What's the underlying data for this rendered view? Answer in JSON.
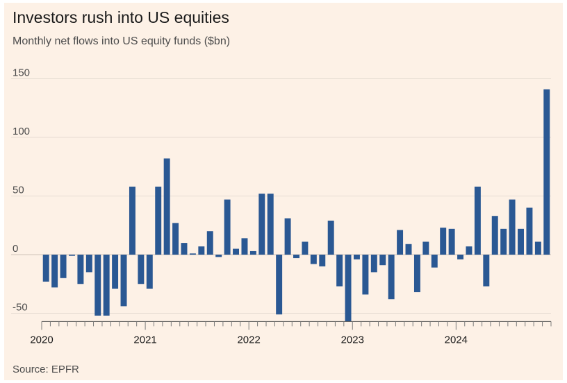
{
  "header": {
    "title": "Investors rush into US equities",
    "subtitle": "Monthly net flows into US equity funds ($bn)"
  },
  "footer": {
    "source": "Source: EPFR"
  },
  "colors": {
    "bar": "#2a5893",
    "grid": "#e6dcd2",
    "background": "#fdf1e6"
  },
  "chart_data": {
    "type": "bar",
    "title": "Investors rush into US equities",
    "subtitle": "Monthly net flows into US equity funds ($bn)",
    "xlabel": "",
    "ylabel": "",
    "ylim": [
      -57,
      150
    ],
    "yticks": [
      -50,
      0,
      50,
      100,
      150
    ],
    "xtick_labels": [
      {
        "label": "2020",
        "index": 0
      },
      {
        "label": "2021",
        "index": 12
      },
      {
        "label": "2022",
        "index": 24
      },
      {
        "label": "2023",
        "index": 36
      },
      {
        "label": "2024",
        "index": 48
      }
    ],
    "grid": true,
    "start": "2020-01",
    "end": "2024-11",
    "categories": [
      "2020-01",
      "2020-02",
      "2020-03",
      "2020-04",
      "2020-05",
      "2020-06",
      "2020-07",
      "2020-08",
      "2020-09",
      "2020-10",
      "2020-11",
      "2020-12",
      "2021-01",
      "2021-02",
      "2021-03",
      "2021-04",
      "2021-05",
      "2021-06",
      "2021-07",
      "2021-08",
      "2021-09",
      "2021-10",
      "2021-11",
      "2021-12",
      "2022-01",
      "2022-02",
      "2022-03",
      "2022-04",
      "2022-05",
      "2022-06",
      "2022-07",
      "2022-08",
      "2022-09",
      "2022-10",
      "2022-11",
      "2022-12",
      "2023-01",
      "2023-02",
      "2023-03",
      "2023-04",
      "2023-05",
      "2023-06",
      "2023-07",
      "2023-08",
      "2023-09",
      "2023-10",
      "2023-11",
      "2023-12",
      "2024-01",
      "2024-02",
      "2024-03",
      "2024-04",
      "2024-05",
      "2024-06",
      "2024-07",
      "2024-08",
      "2024-09",
      "2024-10",
      "2024-11"
    ],
    "values": [
      -23,
      -28,
      -20,
      -1,
      -25,
      -15,
      -52,
      -52,
      -29,
      -44,
      58,
      -25,
      -29,
      58,
      82,
      27,
      10,
      1,
      7,
      20,
      -2,
      47,
      5,
      14,
      3,
      52,
      52,
      -51,
      31,
      -3,
      11,
      -8,
      -10,
      29,
      -27,
      -57,
      -4,
      -34,
      -15,
      -9,
      -38,
      21,
      9,
      -32,
      11,
      -11,
      23,
      22,
      -4,
      7,
      58,
      -27,
      33,
      22,
      47,
      22,
      40,
      11,
      141
    ]
  }
}
